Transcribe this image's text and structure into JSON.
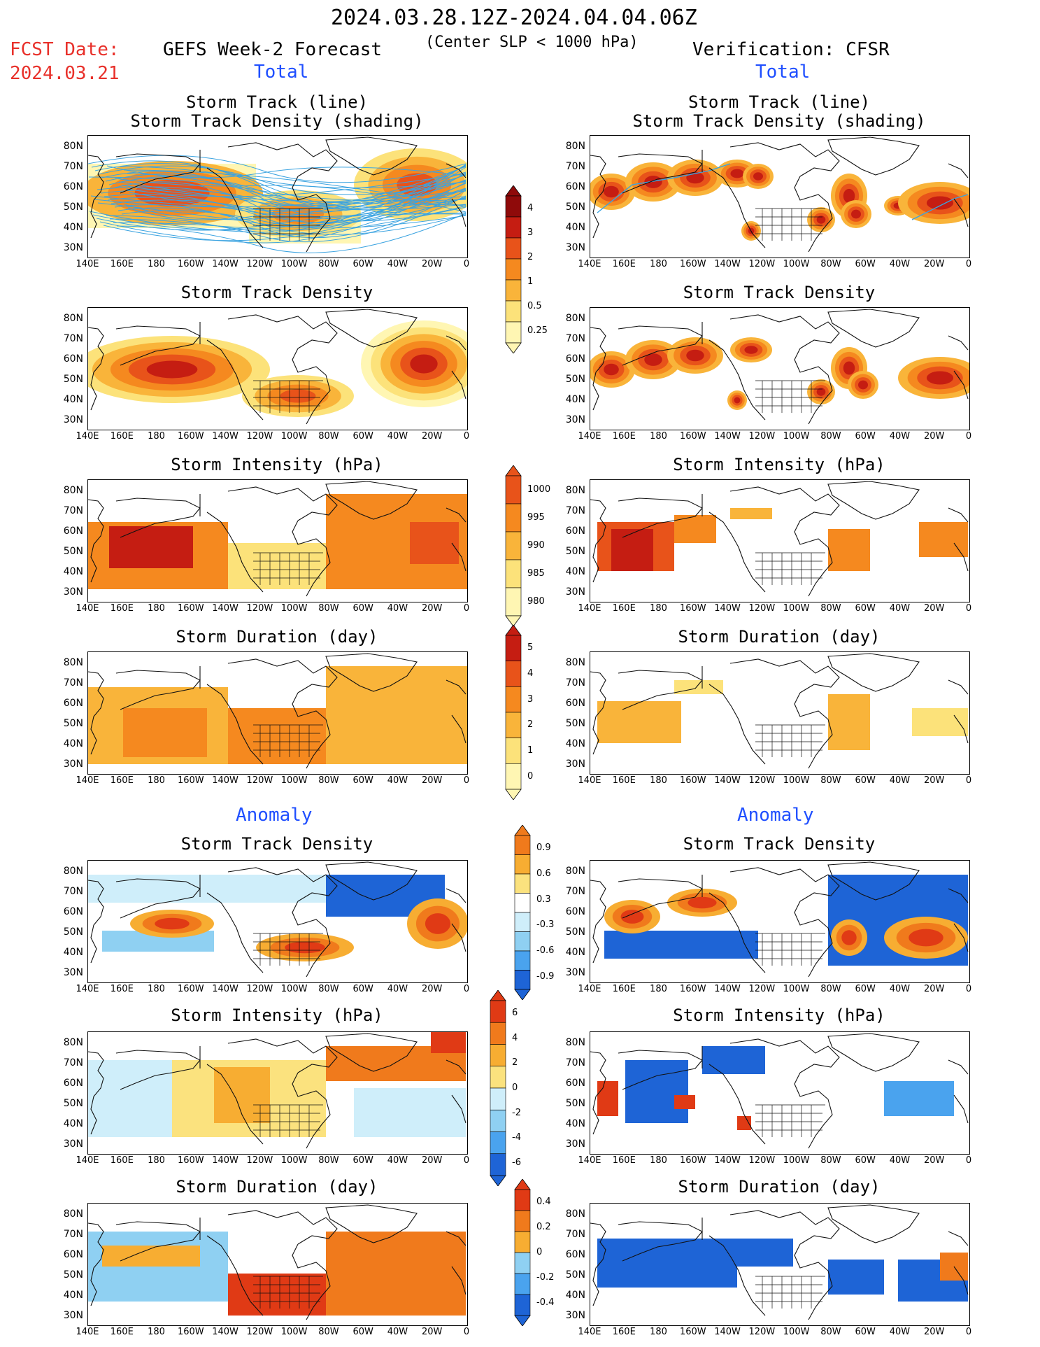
{
  "header": {
    "period": "2024.03.28.12Z-2024.04.04.06Z",
    "fcst_label": "FCST Date:",
    "fcst_date": "2024.03.21",
    "left_title": "GEFS Week-2 Forecast",
    "criterion": "(Center SLP < 1000 hPa)",
    "right_title": "Verification: CFSR"
  },
  "section_labels": {
    "total": "Total",
    "anomaly": "Anomaly"
  },
  "panel_titles": {
    "track_line": "Storm Track (line)",
    "track_shading": "Storm Track Density (shading)",
    "density": "Storm Track Density",
    "intensity": "Storm Intensity (hPa)",
    "duration": "Storm Duration (day)"
  },
  "axes": {
    "lat_labels": [
      "80N",
      "70N",
      "60N",
      "50N",
      "40N",
      "30N"
    ],
    "lon_labels": [
      "140E",
      "160E",
      "180",
      "160W",
      "140W",
      "120W",
      "100W",
      "80W",
      "60W",
      "40W",
      "20W",
      "0"
    ]
  },
  "colorbars": {
    "density_total": [
      "4",
      "3",
      "2",
      "1",
      "0.5",
      "0.25"
    ],
    "intensity_total": [
      "1000",
      "995",
      "990",
      "985",
      "980"
    ],
    "duration_total": [
      "5",
      "4",
      "3",
      "2",
      "1",
      "0"
    ],
    "density_anom": [
      "0.9",
      "0.6",
      "0.3",
      "-0.3",
      "-0.6",
      "-0.9"
    ],
    "intensity_anom": [
      "6",
      "4",
      "2",
      "0",
      "-2",
      "-4",
      "-6"
    ],
    "duration_anom": [
      "0.4",
      "0.2",
      "0",
      "-0.2",
      "-0.4"
    ]
  },
  "colors": {
    "total_scale": [
      "#fff6b3",
      "#fce27a",
      "#f9b43a",
      "#f5891f",
      "#e8531a",
      "#c51d12",
      "#8f0a0a"
    ],
    "anom_pos": [
      "#fbe27e",
      "#f7ad32",
      "#f07a1c",
      "#e03a15"
    ],
    "anom_neg": [
      "#cfeefa",
      "#8fd0f2",
      "#4aa3ee",
      "#1e64d6"
    ],
    "track_line": "#3ba3e0"
  }
}
